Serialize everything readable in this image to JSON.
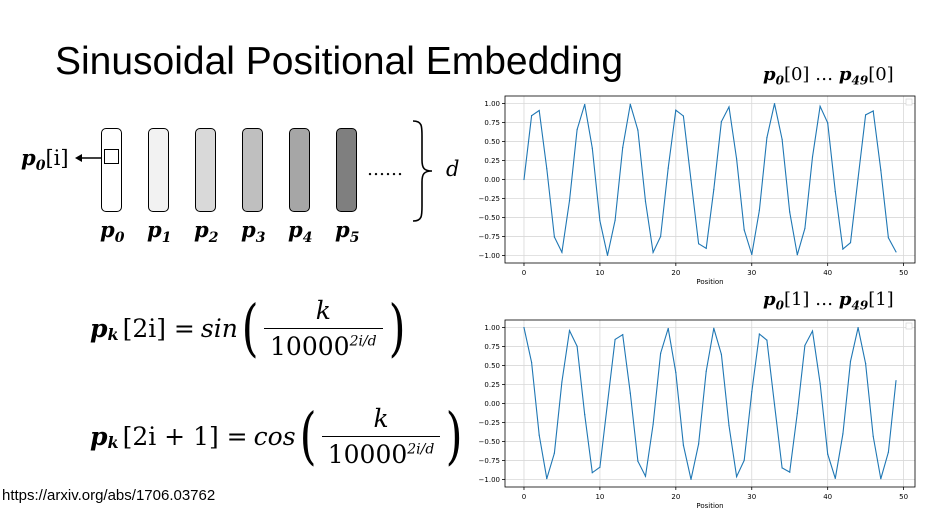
{
  "slide": {
    "title": "Sinusoidal Positional Embedding",
    "citation": "https://arxiv.org/abs/1706.03762"
  },
  "diagram": {
    "pointer": {
      "base": "p",
      "sub": "0",
      "index": "[i]"
    },
    "vectors": [
      {
        "base": "p",
        "sub": "0",
        "fill": "#ffffff"
      },
      {
        "base": "p",
        "sub": "1",
        "fill": "#f2f2f2"
      },
      {
        "base": "p",
        "sub": "2",
        "fill": "#d9d9d9"
      },
      {
        "base": "p",
        "sub": "3",
        "fill": "#bfbfbf"
      },
      {
        "base": "p",
        "sub": "4",
        "fill": "#a6a6a6"
      },
      {
        "base": "p",
        "sub": "5",
        "fill": "#7f7f7f"
      }
    ],
    "ellipsis": "……",
    "dimension_label": "d"
  },
  "formulas": {
    "sin": {
      "lhs_base": "p",
      "lhs_sub": "k",
      "lhs_index": "[2i] = ",
      "fn": "sin",
      "numerator": "k",
      "denominator_base": "10000",
      "denominator_exp": "2i/d"
    },
    "cos": {
      "lhs_base": "p",
      "lhs_sub": "k",
      "lhs_index": "[2i + 1] = ",
      "fn": "cos",
      "numerator": "k",
      "denominator_base": "10000",
      "denominator_exp": "2i/d"
    }
  },
  "chart_data": [
    {
      "type": "line",
      "caption": {
        "start_sub": "0",
        "start_index": "[0]",
        "ellipsis": " … ",
        "end_sub": "49",
        "end_index": "[0]",
        "base": "p"
      },
      "xlabel": "Position",
      "ylabel": "",
      "xlim": [
        -2.5,
        51.5
      ],
      "ylim": [
        -1.1,
        1.1
      ],
      "xticks": [
        "0",
        "10",
        "20",
        "30",
        "40",
        "50"
      ],
      "yticks": [
        "1.00",
        "0.75",
        "0.50",
        "0.25",
        "0.00",
        "−0.25",
        "−0.50",
        "−0.75",
        "−1.00"
      ],
      "grid": true,
      "line_color": "#1f77b4",
      "function": "sin(position)",
      "x": [
        0,
        1,
        2,
        3,
        4,
        5,
        6,
        7,
        8,
        9,
        10,
        11,
        12,
        13,
        14,
        15,
        16,
        17,
        18,
        19,
        20,
        21,
        22,
        23,
        24,
        25,
        26,
        27,
        28,
        29,
        30,
        31,
        32,
        33,
        34,
        35,
        36,
        37,
        38,
        39,
        40,
        41,
        42,
        43,
        44,
        45,
        46,
        47,
        48,
        49
      ],
      "values": [
        0.0,
        0.841,
        0.909,
        0.141,
        -0.757,
        -0.959,
        -0.279,
        0.657,
        0.989,
        0.412,
        -0.544,
        -1.0,
        -0.537,
        0.42,
        0.991,
        0.65,
        -0.288,
        -0.961,
        -0.751,
        0.15,
        0.913,
        0.837,
        -0.009,
        -0.846,
        -0.906,
        -0.132,
        0.763,
        0.956,
        0.271,
        -0.664,
        -0.988,
        -0.404,
        0.551,
        1.0,
        0.529,
        -0.428,
        -0.992,
        -0.644,
        0.296,
        0.964,
        0.745,
        -0.159,
        -0.917,
        -0.832,
        0.018,
        0.851,
        0.902,
        0.124,
        -0.768,
        -0.954
      ]
    },
    {
      "type": "line",
      "caption": {
        "start_sub": "0",
        "start_index": "[1]",
        "ellipsis": " … ",
        "end_sub": "49",
        "end_index": "[1]",
        "base": "p"
      },
      "xlabel": "Position",
      "ylabel": "",
      "xlim": [
        -2.5,
        51.5
      ],
      "ylim": [
        -1.1,
        1.1
      ],
      "xticks": [
        "0",
        "10",
        "20",
        "30",
        "40",
        "50"
      ],
      "yticks": [
        "1.00",
        "0.75",
        "0.50",
        "0.25",
        "0.00",
        "−0.25",
        "−0.50",
        "−0.75",
        "−1.00"
      ],
      "grid": true,
      "line_color": "#1f77b4",
      "function": "cos(position)",
      "x": [
        0,
        1,
        2,
        3,
        4,
        5,
        6,
        7,
        8,
        9,
        10,
        11,
        12,
        13,
        14,
        15,
        16,
        17,
        18,
        19,
        20,
        21,
        22,
        23,
        24,
        25,
        26,
        27,
        28,
        29,
        30,
        31,
        32,
        33,
        34,
        35,
        36,
        37,
        38,
        39,
        40,
        41,
        42,
        43,
        44,
        45,
        46,
        47,
        48,
        49
      ],
      "values": [
        1.0,
        0.54,
        -0.416,
        -0.99,
        -0.654,
        0.284,
        0.96,
        0.754,
        -0.146,
        -0.911,
        -0.839,
        0.004,
        0.844,
        0.907,
        0.137,
        -0.76,
        -0.958,
        -0.275,
        0.66,
        0.989,
        0.408,
        -0.548,
        -1.0,
        -0.533,
        0.424,
        0.991,
        0.647,
        -0.292,
        -0.963,
        -0.748,
        0.154,
        0.915,
        0.834,
        -0.013,
        -0.849,
        -0.904,
        -0.128,
        0.765,
        0.955,
        0.267,
        -0.667,
        -0.987,
        -0.4,
        0.555,
        1.0,
        0.525,
        -0.432,
        -0.992,
        -0.641,
        0.3
      ]
    }
  ]
}
